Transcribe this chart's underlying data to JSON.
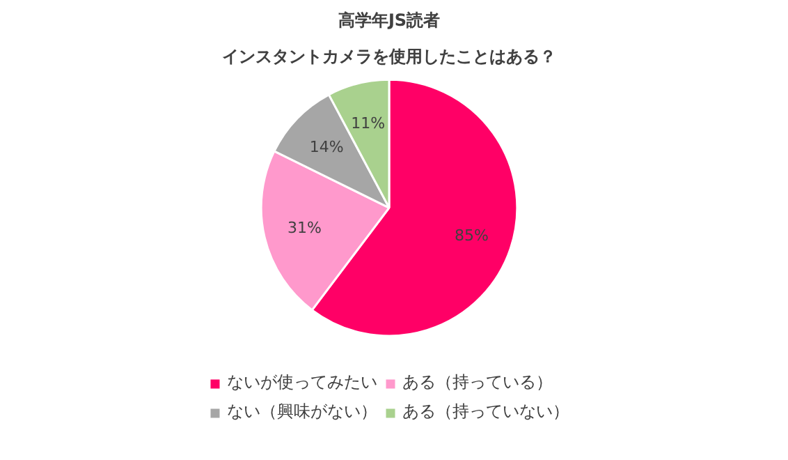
{
  "chart_data": {
    "type": "pie",
    "title": "高学年JS読者",
    "subtitle": "インスタントカメラを使用したことはある？",
    "categories": [
      "ないが使ってみたい",
      "ある（持っている）",
      "ない（興味がない）",
      "ある（持っていない）"
    ],
    "values": [
      85,
      31,
      14,
      11
    ],
    "colors": [
      "#ff0066",
      "#ff99cc",
      "#a6a6a6",
      "#a9d18e"
    ],
    "value_labels": [
      "85%",
      "31%",
      "14%",
      "11%"
    ],
    "legend": "bottom"
  }
}
